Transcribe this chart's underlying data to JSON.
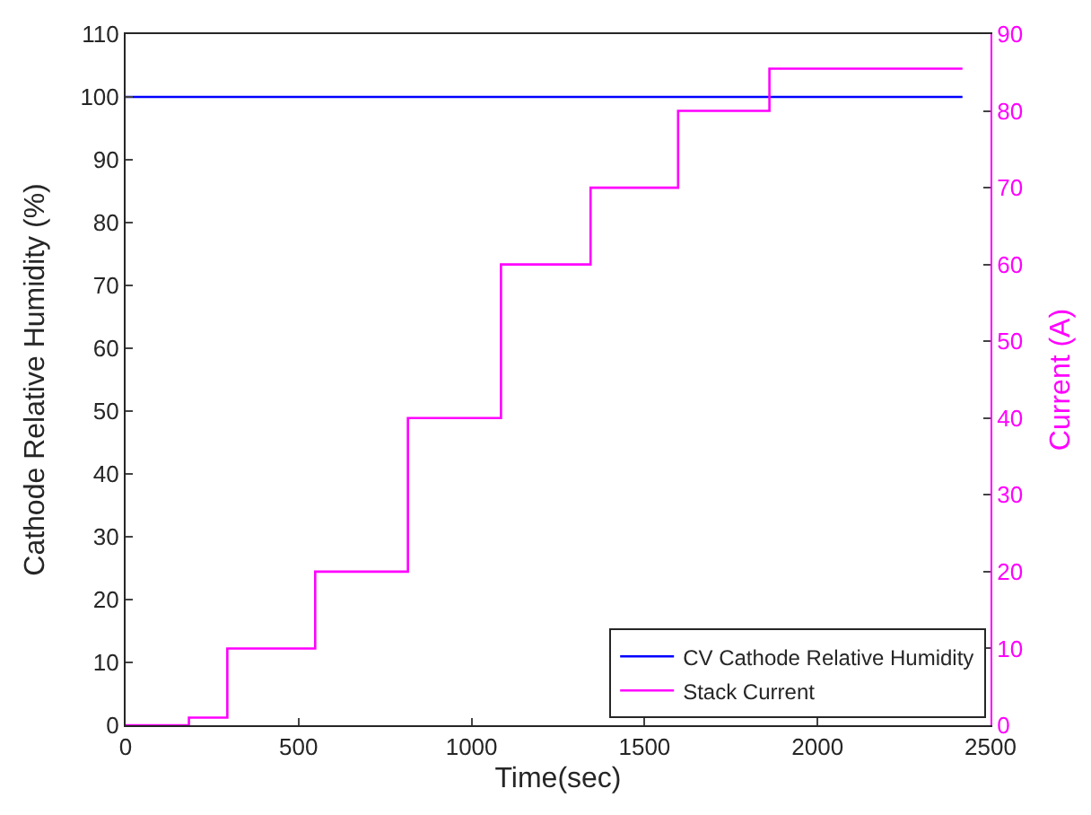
{
  "chart_data": {
    "type": "step",
    "xlabel": "Time(sec)",
    "ylabel": "Cathode Relative Humidity (%)",
    "y2label": "Current (A)",
    "xlim": [
      0,
      2500
    ],
    "xticks": [
      0,
      500,
      1000,
      1500,
      2000,
      2500
    ],
    "ylim": [
      0,
      110
    ],
    "yticks": [
      0,
      10,
      20,
      30,
      40,
      50,
      60,
      70,
      80,
      90,
      100,
      110
    ],
    "y2lim": [
      0,
      90
    ],
    "y2ticks": [
      0,
      10,
      20,
      30,
      40,
      50,
      60,
      70,
      80,
      90
    ],
    "series": [
      {
        "name": "CV Cathode Relative Humidity",
        "color": "#0000ff",
        "x": [
          0,
          2419
        ],
        "values": [
          100,
          100
        ]
      },
      {
        "name": "Stack Current",
        "color": "#ff00ff",
        "axis": "y2",
        "x": [
          0,
          183,
          294,
          548,
          816,
          1085,
          1344,
          1597,
          1861,
          2419
        ],
        "values": [
          0,
          1,
          10,
          20,
          40,
          60,
          70,
          80,
          85.5,
          85.5
        ]
      }
    ],
    "legend": "bottom right"
  }
}
